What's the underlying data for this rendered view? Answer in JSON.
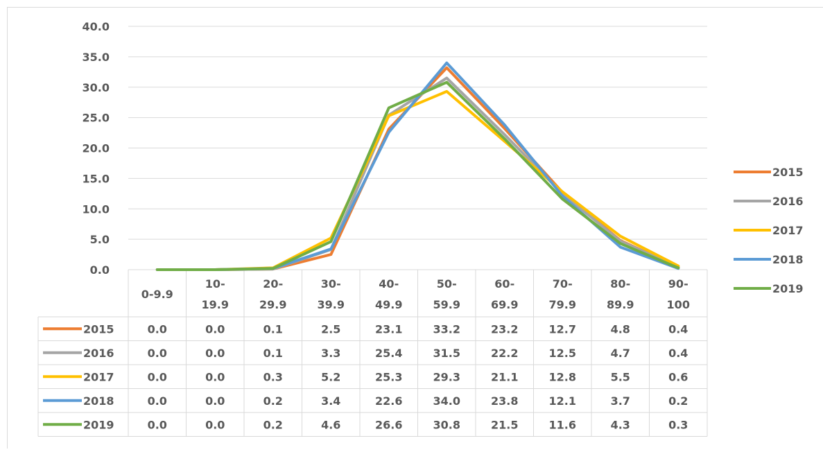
{
  "chart_data": {
    "type": "line",
    "title": "",
    "xlabel": "",
    "ylabel": "",
    "ylim": [
      0,
      40
    ],
    "yticks": [
      "0.0",
      "5.0",
      "10.0",
      "15.0",
      "20.0",
      "25.0",
      "30.0",
      "35.0",
      "40.0"
    ],
    "categories": [
      [
        "0-9.9"
      ],
      [
        "10-",
        "19.9"
      ],
      [
        "20-",
        "29.9"
      ],
      [
        "30-",
        "39.9"
      ],
      [
        "40-",
        "49.9"
      ],
      [
        "50-",
        "59.9"
      ],
      [
        "60-",
        "69.9"
      ],
      [
        "70-",
        "79.9"
      ],
      [
        "80-",
        "89.9"
      ],
      [
        "90-",
        "100"
      ]
    ],
    "grid": true,
    "legend_position": "right",
    "data_table": true,
    "series": [
      {
        "name": "2015",
        "color": "#ed7d31",
        "values": [
          0.0,
          0.0,
          0.1,
          2.5,
          23.1,
          33.2,
          23.2,
          12.7,
          4.8,
          0.4
        ],
        "display": [
          "0.0",
          "0.0",
          "0.1",
          "2.5",
          "23.1",
          "33.2",
          "23.2",
          "12.7",
          "4.8",
          "0.4"
        ]
      },
      {
        "name": "2016",
        "color": "#a5a5a5",
        "values": [
          0.0,
          0.0,
          0.1,
          3.3,
          25.4,
          31.5,
          22.2,
          12.5,
          4.7,
          0.4
        ],
        "display": [
          "0.0",
          "0.0",
          "0.1",
          "3.3",
          "25.4",
          "31.5",
          "22.2",
          "12.5",
          "4.7",
          "0.4"
        ]
      },
      {
        "name": "2017",
        "color": "#ffc000",
        "values": [
          0.0,
          0.0,
          0.3,
          5.2,
          25.3,
          29.3,
          21.1,
          12.8,
          5.5,
          0.6
        ],
        "display": [
          "0.0",
          "0.0",
          "0.3",
          "5.2",
          "25.3",
          "29.3",
          "21.1",
          "12.8",
          "5.5",
          "0.6"
        ]
      },
      {
        "name": "2018",
        "color": "#5b9bd5",
        "values": [
          0.0,
          0.0,
          0.2,
          3.4,
          22.6,
          34.0,
          23.8,
          12.1,
          3.7,
          0.2
        ],
        "display": [
          "0.0",
          "0.0",
          "0.2",
          "3.4",
          "22.6",
          "34.0",
          "23.8",
          "12.1",
          "3.7",
          "0.2"
        ]
      },
      {
        "name": "2019",
        "color": "#70ad47",
        "values": [
          0.0,
          0.0,
          0.2,
          4.6,
          26.6,
          30.8,
          21.5,
          11.6,
          4.3,
          0.3
        ],
        "display": [
          "0.0",
          "0.0",
          "0.2",
          "4.6",
          "26.6",
          "30.8",
          "21.5",
          "11.6",
          "4.3",
          "0.3"
        ]
      }
    ]
  }
}
